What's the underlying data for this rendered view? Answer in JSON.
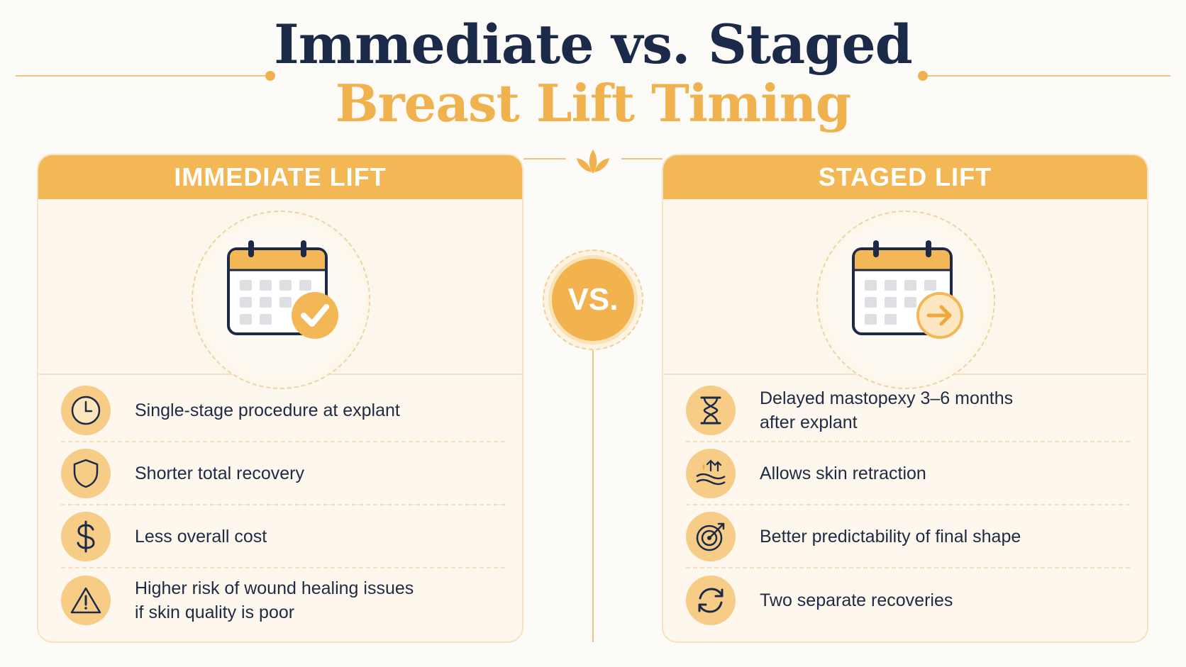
{
  "title": {
    "line1": "Immediate vs. Staged",
    "line2": "Breast Lift Timing"
  },
  "vs_label": "VS.",
  "colors": {
    "accent": "#f3b855",
    "navy": "#1c2a4a",
    "card_bg": "#fdf7ee"
  },
  "left_card": {
    "header": "IMMEDIATE LIFT",
    "hero_icon": "calendar-check-icon",
    "items": [
      {
        "icon": "clock-icon",
        "text": "Single-stage procedure at explant",
        "text2": ""
      },
      {
        "icon": "shield-icon",
        "text": "Shorter total recovery",
        "text2": ""
      },
      {
        "icon": "dollar-icon",
        "text": "Less overall cost",
        "text2": ""
      },
      {
        "icon": "warning-icon",
        "text": "Higher risk of wound healing issues",
        "text2": "if skin quality is poor"
      }
    ]
  },
  "right_card": {
    "header": "STAGED LIFT",
    "hero_icon": "calendar-arrow-icon",
    "items": [
      {
        "icon": "hourglass-icon",
        "text": "Delayed mastopexy 3–6 months",
        "text2": "after explant"
      },
      {
        "icon": "skin-retraction-icon",
        "text": "Allows skin retraction",
        "text2": ""
      },
      {
        "icon": "target-icon",
        "text": "Better predictability of final shape",
        "text2": ""
      },
      {
        "icon": "cycle-icon",
        "text": "Two separate recoveries",
        "text2": ""
      }
    ]
  }
}
